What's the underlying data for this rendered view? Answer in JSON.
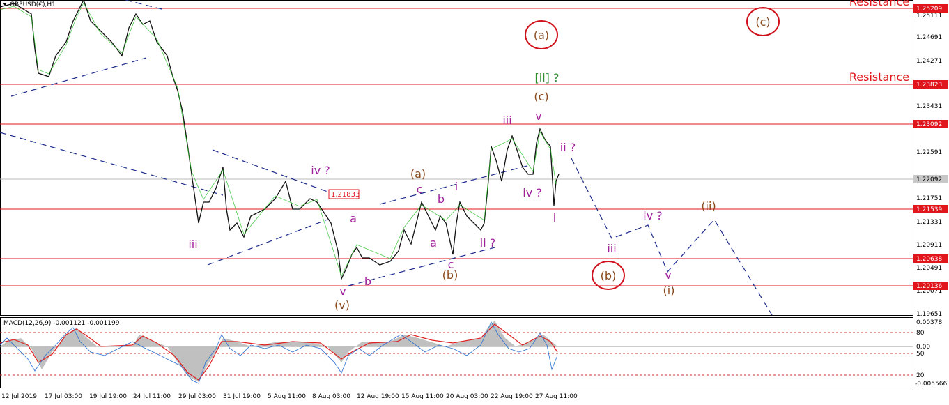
{
  "header": "GBPUSD(€),H1",
  "price_axis": [
    "1.25111",
    "1.24691",
    "1.24271",
    "1.23431",
    "1.22591",
    "1.21751",
    "1.21331",
    "1.20911",
    "1.20491",
    "1.20071",
    "1.19651"
  ],
  "levels": [
    "1.25209",
    "1.23823",
    "1.23092",
    "1.21539",
    "1.20638",
    "1.20136"
  ],
  "current_price": "1.22092",
  "annotations": {
    "resistance_top": "Resistance",
    "resistance_mid": "Resistance",
    "marker": "1.21833"
  },
  "waves": [
    "(a)",
    "(c)",
    "[ii] ?",
    "(c)",
    "iii",
    "v",
    "ii ?",
    "iv ?",
    "(a)",
    "c",
    "b",
    "i",
    "iv ?",
    "i",
    "a",
    "a",
    "ii ?",
    "iii",
    "iii",
    "iv ?",
    "(ii)",
    "(b)",
    "c",
    "(b)",
    "b",
    "v",
    "(v)",
    "v",
    "(i)"
  ],
  "macd": {
    "title": "MACD(12,26,9) -0.001121 -0.001199",
    "axis": [
      "0.00378",
      "80",
      "0.00",
      "50",
      "20",
      "-0.005566"
    ]
  },
  "time_axis": [
    "12 Jul 2019",
    "17 Jul 03:00",
    "19 Jul 19:00",
    "24 Jul 11:00",
    "29 Jul 03:00",
    "31 Jul 19:00",
    "5 Aug 11:00",
    "8 Aug 03:00",
    "12 Aug 19:00",
    "15 Aug 11:00",
    "20 Aug 03:00",
    "22 Aug 19:00",
    "27 Aug 11:00"
  ]
}
